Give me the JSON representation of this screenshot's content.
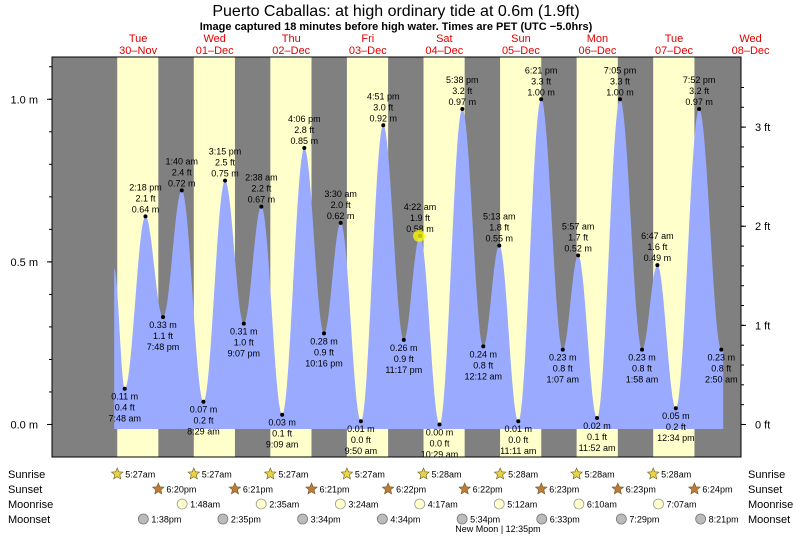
{
  "title": "Puerto Caballas: at high  ordinary tide at 0.6m (1.9ft)",
  "subtitle": "Image captured 18 minutes before high water. Times are PET (UTC −5.0hrs)",
  "colors": {
    "night": "#808080",
    "day": "#ffffcc",
    "tide_fill": "#99aaff",
    "day_label": "#e00000",
    "sunrise_marker": "#e8d44a",
    "sunset_marker": "#c07a3a",
    "moonrise_marker": "#ffffcc",
    "moonset_marker": "#bbbbbb",
    "current_marker": "#ffff00"
  },
  "days": [
    {
      "dow": "Tue",
      "date": "30–Nov"
    },
    {
      "dow": "Wed",
      "date": "01–Dec"
    },
    {
      "dow": "Thu",
      "date": "02–Dec"
    },
    {
      "dow": "Fri",
      "date": "03–Dec"
    },
    {
      "dow": "Sat",
      "date": "04–Dec"
    },
    {
      "dow": "Sun",
      "date": "05–Dec"
    },
    {
      "dow": "Mon",
      "date": "06–Dec"
    },
    {
      "dow": "Tue",
      "date": "07–Dec"
    },
    {
      "dow": "Wed",
      "date": "08–Dec"
    }
  ],
  "left_axis_ticks": [
    {
      "value": 0.0,
      "label": "0.0 m"
    },
    {
      "value": 0.5,
      "label": "0.5 m"
    },
    {
      "value": 1.0,
      "label": "1.0 m"
    }
  ],
  "right_axis_ticks": [
    {
      "value": 0,
      "label": "0 ft"
    },
    {
      "value": 1,
      "label": "1 ft"
    },
    {
      "value": 2,
      "label": "2 ft"
    },
    {
      "value": 3,
      "label": "3 ft"
    }
  ],
  "chart_data": {
    "type": "area",
    "x_unit": "hours since 30-Nov 00:00 PET",
    "y_unit": "m",
    "ylim": [
      -0.1,
      1.13
    ],
    "xlim": [
      -15,
      201
    ],
    "series": [
      {
        "values_m": [
          0.11,
          0.64,
          0.33,
          0.72,
          0.07,
          0.75,
          0.31,
          0.67,
          0.03,
          0.85,
          0.28,
          0.62,
          0.01,
          0.92,
          0.26,
          0.58,
          0.0,
          0.97,
          0.24,
          0.55,
          0.01,
          1.0,
          0.23,
          0.52,
          0.02,
          1.0,
          0.23,
          0.49,
          0.05,
          0.97,
          0.23
        ]
      }
    ],
    "extremes": [
      {
        "hour": 7.8,
        "kind": "low",
        "time": "7:48 am",
        "m": "0.11 m",
        "ft": "0.4 ft"
      },
      {
        "hour": 14.3,
        "kind": "high",
        "time": "2:18 pm",
        "m": "0.64 m",
        "ft": "2.1 ft"
      },
      {
        "hour": 19.8,
        "kind": "low",
        "time": "7:48 pm",
        "m": "0.33 m",
        "ft": "1.1 ft"
      },
      {
        "hour": 25.67,
        "kind": "high",
        "time": "1:40 am",
        "m": "0.72 m",
        "ft": "2.4 ft"
      },
      {
        "hour": 32.48,
        "kind": "low",
        "time": "8:29 am",
        "m": "0.07 m",
        "ft": "0.2 ft"
      },
      {
        "hour": 39.25,
        "kind": "high",
        "time": "3:15 pm",
        "m": "0.75 m",
        "ft": "2.5 ft"
      },
      {
        "hour": 45.12,
        "kind": "low",
        "time": "9:07 pm",
        "m": "0.31 m",
        "ft": "1.0 ft"
      },
      {
        "hour": 50.63,
        "kind": "high",
        "time": "2:38 am",
        "m": "0.67 m",
        "ft": "2.2 ft"
      },
      {
        "hour": 57.15,
        "kind": "low",
        "time": "9:09 am",
        "m": "0.03 m",
        "ft": "0.1 ft"
      },
      {
        "hour": 64.1,
        "kind": "high",
        "time": "4:06 pm",
        "m": "0.85 m",
        "ft": "2.8 ft"
      },
      {
        "hour": 70.27,
        "kind": "low",
        "time": "10:16 pm",
        "m": "0.28 m",
        "ft": "0.9 ft"
      },
      {
        "hour": 75.5,
        "kind": "high",
        "time": "3:30 am",
        "m": "0.62 m",
        "ft": "2.0 ft"
      },
      {
        "hour": 81.83,
        "kind": "low",
        "time": "9:50 am",
        "m": "0.01 m",
        "ft": "0.0 ft"
      },
      {
        "hour": 88.85,
        "kind": "high",
        "time": "4:51 pm",
        "m": "0.92 m",
        "ft": "3.0 ft"
      },
      {
        "hour": 95.28,
        "kind": "low",
        "time": "11:17 pm",
        "m": "0.26 m",
        "ft": "0.9 ft"
      },
      {
        "hour": 100.37,
        "kind": "high",
        "time": "4:22 am",
        "m": "0.58 m",
        "ft": "1.9 ft"
      },
      {
        "hour": 106.48,
        "kind": "low",
        "time": "10:29 am",
        "m": "0.00 m",
        "ft": "0.0 ft"
      },
      {
        "hour": 113.63,
        "kind": "high",
        "time": "5:38 pm",
        "m": "0.97 m",
        "ft": "3.2 ft"
      },
      {
        "hour": 120.2,
        "kind": "low",
        "time": "12:12 am",
        "m": "0.24 m",
        "ft": "0.8 ft"
      },
      {
        "hour": 125.22,
        "kind": "high",
        "time": "5:13 am",
        "m": "0.55 m",
        "ft": "1.8 ft"
      },
      {
        "hour": 131.18,
        "kind": "low",
        "time": "11:11 am",
        "m": "0.01 m",
        "ft": "0.0 ft"
      },
      {
        "hour": 138.35,
        "kind": "high",
        "time": "6:21 pm",
        "m": "1.00 m",
        "ft": "3.3 ft"
      },
      {
        "hour": 145.12,
        "kind": "low",
        "time": "1:07 am",
        "m": "0.23 m",
        "ft": "0.8 ft"
      },
      {
        "hour": 149.95,
        "kind": "high",
        "time": "5:57 am",
        "m": "0.52 m",
        "ft": "1.7 ft"
      },
      {
        "hour": 155.87,
        "kind": "low",
        "time": "11:52 am",
        "m": "0.02 m",
        "ft": "0.1 ft"
      },
      {
        "hour": 163.08,
        "kind": "high",
        "time": "7:05 pm",
        "m": "1.00 m",
        "ft": "3.3 ft"
      },
      {
        "hour": 169.97,
        "kind": "low",
        "time": "1:58 am",
        "m": "0.23 m",
        "ft": "0.8 ft"
      },
      {
        "hour": 174.78,
        "kind": "high",
        "time": "6:47 am",
        "m": "0.49 m",
        "ft": "1.6 ft"
      },
      {
        "hour": 180.57,
        "kind": "low",
        "time": "12:34 pm",
        "m": "0.05 m",
        "ft": "0.2 ft"
      },
      {
        "hour": 187.87,
        "kind": "high",
        "time": "7:52 pm",
        "m": "0.97 m",
        "ft": "3.2 ft"
      },
      {
        "hour": 194.83,
        "kind": "low",
        "time": "2:50 am",
        "m": "0.23 m",
        "ft": "0.8 ft"
      }
    ],
    "current": {
      "hour": 100.07,
      "m": 0.58
    }
  },
  "rows": {
    "sunrise": {
      "label": "Sunrise",
      "values": [
        "5:27am",
        "5:27am",
        "5:27am",
        "5:27am",
        "5:28am",
        "5:28am",
        "5:28am",
        "5:28am"
      ],
      "hours": [
        5.45,
        29.45,
        53.45,
        77.45,
        101.47,
        125.47,
        149.47,
        173.47
      ]
    },
    "sunset": {
      "label": "Sunset",
      "values": [
        "6:20pm",
        "6:21pm",
        "6:21pm",
        "6:22pm",
        "6:22pm",
        "6:23pm",
        "6:23pm",
        "6:24pm"
      ],
      "hours": [
        18.33,
        42.35,
        66.35,
        90.37,
        114.37,
        138.38,
        162.38,
        186.4
      ]
    },
    "moonrise": {
      "label": "Moonrise",
      "values": [
        "1:48am",
        "2:35am",
        "3:24am",
        "4:17am",
        "5:12am",
        "6:10am",
        "7:07am"
      ],
      "hours": [
        25.8,
        50.58,
        75.4,
        100.28,
        125.2,
        150.17,
        175.12
      ]
    },
    "moonset": {
      "label": "Moonset",
      "values": [
        "1:38pm",
        "2:35pm",
        "3:34pm",
        "4:34pm",
        "5:34pm",
        "6:33pm",
        "7:29pm",
        "8:21pm"
      ],
      "hours": [
        13.63,
        38.58,
        63.57,
        88.57,
        113.57,
        138.55,
        163.48,
        188.35
      ]
    },
    "new_moon": "New Moon | 12:35pm"
  }
}
